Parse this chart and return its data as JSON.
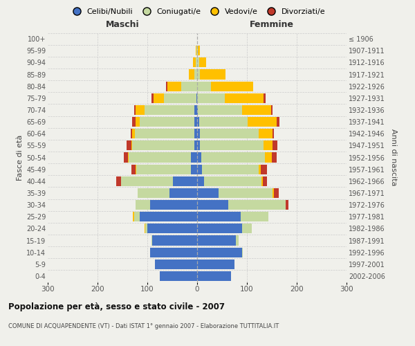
{
  "age_groups": [
    "0-4",
    "5-9",
    "10-14",
    "15-19",
    "20-24",
    "25-29",
    "30-34",
    "35-39",
    "40-44",
    "45-49",
    "50-54",
    "55-59",
    "60-64",
    "65-69",
    "70-74",
    "75-79",
    "80-84",
    "85-89",
    "90-94",
    "95-99",
    "100+"
  ],
  "birth_years": [
    "2002-2006",
    "1997-2001",
    "1992-1996",
    "1987-1991",
    "1982-1986",
    "1977-1981",
    "1972-1976",
    "1967-1971",
    "1962-1966",
    "1957-1961",
    "1952-1956",
    "1947-1951",
    "1942-1946",
    "1937-1941",
    "1932-1936",
    "1927-1931",
    "1922-1926",
    "1917-1921",
    "1912-1916",
    "1907-1911",
    "≤ 1906"
  ],
  "male_celibe": [
    75,
    85,
    95,
    90,
    100,
    115,
    95,
    55,
    48,
    12,
    12,
    5,
    5,
    5,
    5,
    2,
    0,
    0,
    0,
    0,
    0
  ],
  "male_coniugato": [
    0,
    0,
    0,
    2,
    4,
    12,
    28,
    65,
    105,
    110,
    125,
    125,
    120,
    110,
    100,
    65,
    32,
    5,
    3,
    1,
    0
  ],
  "male_vedovo": [
    0,
    0,
    0,
    0,
    2,
    2,
    0,
    0,
    0,
    2,
    2,
    2,
    5,
    8,
    18,
    20,
    28,
    12,
    5,
    2,
    0
  ],
  "male_divorziato": [
    0,
    0,
    0,
    0,
    0,
    0,
    0,
    0,
    10,
    8,
    8,
    10,
    3,
    8,
    3,
    5,
    2,
    0,
    0,
    0,
    0
  ],
  "female_celibe": [
    68,
    75,
    90,
    78,
    90,
    88,
    63,
    43,
    14,
    10,
    8,
    5,
    5,
    4,
    2,
    0,
    0,
    0,
    0,
    0,
    0
  ],
  "female_coniugata": [
    0,
    0,
    2,
    5,
    20,
    55,
    115,
    108,
    115,
    113,
    128,
    128,
    118,
    98,
    88,
    55,
    28,
    5,
    4,
    1,
    0
  ],
  "female_vedova": [
    0,
    0,
    0,
    0,
    0,
    0,
    0,
    3,
    3,
    5,
    14,
    18,
    28,
    58,
    58,
    78,
    85,
    52,
    14,
    5,
    0
  ],
  "female_divorziata": [
    0,
    0,
    0,
    0,
    0,
    0,
    5,
    10,
    8,
    12,
    10,
    10,
    3,
    5,
    3,
    5,
    0,
    0,
    0,
    0,
    0
  ],
  "colors": {
    "celibe": "#4472c4",
    "coniugato": "#c5d9a0",
    "vedovo": "#ffc000",
    "divorziato": "#c0392b"
  },
  "title": "Popolazione per età, sesso e stato civile - 2007",
  "subtitle": "COMUNE DI ACQUAPENDENTE (VT) - Dati ISTAT 1° gennaio 2007 - Elaborazione TUTTITALIA.IT",
  "ylabel_left": "Fasce di età",
  "ylabel_right": "Anni di nascita",
  "xlabel_left": "Maschi",
  "xlabel_right": "Femmine",
  "xlim": 300,
  "legend_labels": [
    "Celibi/Nubili",
    "Coniugati/e",
    "Vedovi/e",
    "Divorziati/e"
  ],
  "background_color": "#f0f0eb"
}
